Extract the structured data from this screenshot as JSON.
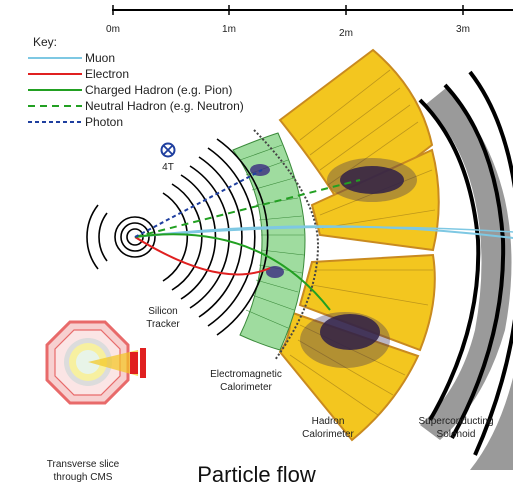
{
  "scale": {
    "ticks": [
      "0m",
      "1m",
      "2m",
      "3m"
    ]
  },
  "key": {
    "title": "Key:",
    "items": [
      {
        "label": "Muon",
        "color": "#7ec8e3",
        "style": "solid"
      },
      {
        "label": "Electron",
        "color": "#e02020",
        "style": "solid"
      },
      {
        "label": "Charged Hadron (e.g. Pion)",
        "color": "#22a022",
        "style": "solid"
      },
      {
        "label": "Neutral Hadron (e.g. Neutron)",
        "color": "#22a022",
        "style": "dashed"
      },
      {
        "label": "Photon",
        "color": "#1f3f9f",
        "style": "dashed"
      }
    ]
  },
  "field": {
    "label": "4T"
  },
  "detectors": {
    "tracker": [
      "Silicon",
      "Tracker"
    ],
    "ecal": [
      "Electromagnetic",
      "Calorimeter"
    ],
    "hcal": [
      "Hadron",
      "Calorimeter"
    ],
    "solenoid": [
      "Superconducting",
      "Solenoid"
    ],
    "inset": [
      "Transverse slice",
      "through CMS"
    ]
  },
  "caption": "Particle flow",
  "colors": {
    "hcal_fill": "#f3c61f",
    "hcal_border": "#c98a1f",
    "ecal_fill": "#9fdc9f",
    "solenoid_fill": "#9a9a9a",
    "inset_red": "#e86a6a"
  }
}
